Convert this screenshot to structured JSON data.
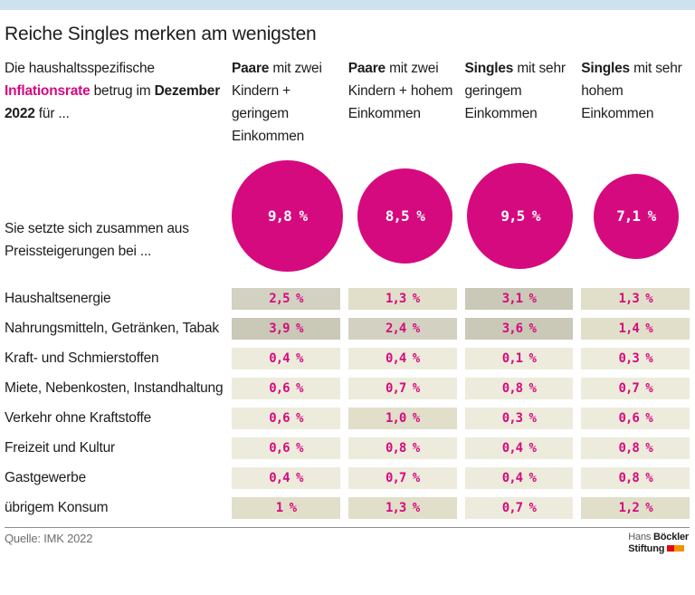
{
  "ui": {
    "topbar_color": "#cde2ee",
    "accent_pink": "#d60a7f",
    "heat_colors": [
      "#edebdc",
      "#e1dfca",
      "#d3d1c1",
      "#cac8b6"
    ]
  },
  "title": "Reiche Singles merken am wenigsten",
  "intro": {
    "part1": "Die haushaltsspezifische ",
    "highlight": "Inflationsrate",
    "part2": " betrug im ",
    "bold_date": "Dezember 2022",
    "part3": " für ..."
  },
  "sub_intro": "Sie setzte sich zusammen aus Preissteigerungen bei ...",
  "columns": [
    {
      "bold": "Paare",
      "rest": " mit zwei Kindern + geringem Einkommen"
    },
    {
      "bold": "Paare",
      "rest": " mit zwei Kindern + hohem Einkommen"
    },
    {
      "bold": "Singles",
      "rest": " mit sehr geringem Einkommen"
    },
    {
      "bold": "Singles",
      "rest": " mit sehr hohem Einkommen"
    }
  ],
  "circles": [
    {
      "label": "9,8 %",
      "value": 9.8,
      "diameter": 123
    },
    {
      "label": "8,5 %",
      "value": 8.5,
      "diameter": 105
    },
    {
      "label": "9,5 %",
      "value": 9.5,
      "diameter": 117
    },
    {
      "label": "7,1 %",
      "value": 7.1,
      "diameter": 94
    }
  ],
  "rows": [
    {
      "label": "Haushaltsenergie",
      "cells": [
        {
          "text": "2,5 %",
          "level": 2
        },
        {
          "text": "1,3 %",
          "level": 1
        },
        {
          "text": "3,1 %",
          "level": 3
        },
        {
          "text": "1,3 %",
          "level": 1
        }
      ]
    },
    {
      "label": "Nahrungsmitteln, Getränken, Tabak",
      "cells": [
        {
          "text": "3,9 %",
          "level": 3
        },
        {
          "text": "2,4 %",
          "level": 2
        },
        {
          "text": "3,6 %",
          "level": 3
        },
        {
          "text": "1,4 %",
          "level": 1
        }
      ]
    },
    {
      "label": "Kraft- und Schmierstoffen",
      "cells": [
        {
          "text": "0,4 %",
          "level": 0
        },
        {
          "text": "0,4 %",
          "level": 0
        },
        {
          "text": "0,1 %",
          "level": 0
        },
        {
          "text": "0,3 %",
          "level": 0
        }
      ]
    },
    {
      "label": "Miete, Nebenkosten, Instandhaltung",
      "cells": [
        {
          "text": "0,6 %",
          "level": 0
        },
        {
          "text": "0,7 %",
          "level": 0
        },
        {
          "text": "0,8 %",
          "level": 0
        },
        {
          "text": "0,7 %",
          "level": 0
        }
      ]
    },
    {
      "label": "Verkehr ohne Kraftstoffe",
      "cells": [
        {
          "text": "0,6 %",
          "level": 0
        },
        {
          "text": "1,0 %",
          "level": 1
        },
        {
          "text": "0,3 %",
          "level": 0
        },
        {
          "text": "0,6 %",
          "level": 0
        }
      ]
    },
    {
      "label": "Freizeit und Kultur",
      "cells": [
        {
          "text": "0,6 %",
          "level": 0
        },
        {
          "text": "0,8 %",
          "level": 0
        },
        {
          "text": "0,4 %",
          "level": 0
        },
        {
          "text": "0,8 %",
          "level": 0
        }
      ]
    },
    {
      "label": "Gastgewerbe",
      "cells": [
        {
          "text": "0,4 %",
          "level": 0
        },
        {
          "text": "0,7 %",
          "level": 0
        },
        {
          "text": "0,4 %",
          "level": 0
        },
        {
          "text": "0,8 %",
          "level": 0
        }
      ]
    },
    {
      "label": "übrigem Konsum",
      "cells": [
        {
          "text": "1 %",
          "level": 1
        },
        {
          "text": "1,3 %",
          "level": 1
        },
        {
          "text": "0,7 %",
          "level": 0
        },
        {
          "text": "1,2 %",
          "level": 1
        }
      ]
    }
  ],
  "footer": {
    "source": "Quelle: IMK 2022",
    "logo": {
      "line1_light": "Hans",
      "line1_bold": "Böckler",
      "line2_bold": "Stiftung"
    },
    "logo_colors": {
      "red": "#e30613",
      "orange": "#f39200"
    }
  },
  "chart_data": {
    "type": "table",
    "title": "Reiche Singles merken am wenigsten",
    "subtitle": "Die haushaltsspezifische Inflationsrate betrug im Dezember 2022 für ...",
    "categories": [
      "Haushaltsenergie",
      "Nahrungsmitteln, Getränken, Tabak",
      "Kraft- und Schmierstoffen",
      "Miete, Nebenkosten, Instandhaltung",
      "Verkehr ohne Kraftstoffe",
      "Freizeit und Kultur",
      "Gastgewerbe",
      "übrigem Konsum"
    ],
    "series": [
      {
        "name": "Paare mit zwei Kindern + geringem Einkommen",
        "total": 9.8,
        "values": [
          2.5,
          3.9,
          0.4,
          0.6,
          0.6,
          0.6,
          0.4,
          1.0
        ]
      },
      {
        "name": "Paare mit zwei Kindern + hohem Einkommen",
        "total": 8.5,
        "values": [
          1.3,
          2.4,
          0.4,
          0.7,
          1.0,
          0.8,
          0.7,
          1.3
        ]
      },
      {
        "name": "Singles mit sehr geringem Einkommen",
        "total": 9.5,
        "values": [
          3.1,
          3.6,
          0.1,
          0.8,
          0.3,
          0.4,
          0.4,
          0.7
        ]
      },
      {
        "name": "Singles mit sehr hohem Einkommen",
        "total": 7.1,
        "values": [
          1.3,
          1.4,
          0.3,
          0.7,
          0.6,
          0.8,
          0.8,
          1.2
        ]
      }
    ],
    "unit": "%",
    "source": "Quelle: IMK 2022"
  }
}
